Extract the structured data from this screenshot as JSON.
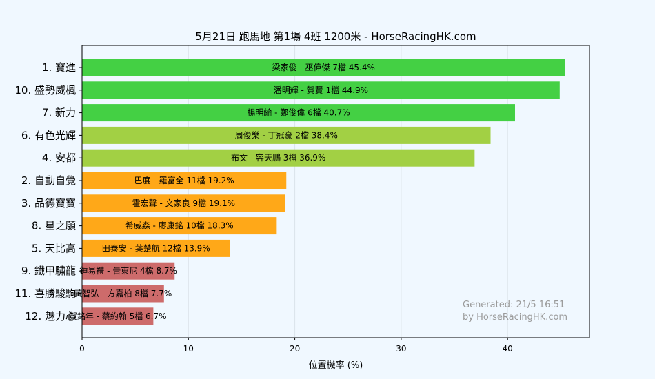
{
  "chart_data": {
    "type": "bar",
    "orientation": "horizontal",
    "title": "5月21日  跑馬地  第1場  4班  1200米 - HorseRacingHK.com",
    "xlabel": "位置機率 (%)",
    "ylabel": "",
    "xlim": [
      0,
      47.7
    ],
    "xticks": [
      0,
      10,
      20,
      30,
      40
    ],
    "grid": "vertical",
    "categories": [
      "1. 寶進",
      "10. 盛勢威楓",
      "7. 新力",
      "6. 有色光輝",
      "4. 安都",
      "2. 自動自覺",
      "3. 品德寶寶",
      "8. 星之願",
      "5. 天比高",
      "9. 鐵甲驌龍",
      "11. 喜勝駿駒",
      "12. 魅力心"
    ],
    "values": [
      45.4,
      44.9,
      40.7,
      38.4,
      36.9,
      19.2,
      19.1,
      18.3,
      13.9,
      8.7,
      7.7,
      6.7
    ],
    "bar_labels": [
      "梁家俊 - 巫偉傑 7檔  45.4%",
      "潘明輝 - 賀賢 1檔  44.9%",
      "楊明綸 - 鄭俊偉 6檔  40.7%",
      "周俊樂 - 丁冠豪 2檔  38.4%",
      "布文 - 容天鵬 3檔  36.9%",
      "巴度 - 羅富全 11檔  19.2%",
      "霍宏聲 - 文家良 9檔  19.1%",
      "希威森 - 廖康銘 10檔  18.3%",
      "田泰安 - 葉楚航 12檔  13.9%",
      "鍾易禮 - 告東尼 4檔  8.7%",
      "黃智弘 - 方嘉柏 8檔  7.7%",
      "賀銘年 - 蔡約翰 5檔  6.7%"
    ],
    "bar_colors": [
      "#44d044",
      "#44d044",
      "#44d044",
      "#a2d044",
      "#a2d044",
      "#ffa818",
      "#ffa818",
      "#ffa818",
      "#ffa818",
      "#cd6b6b",
      "#cd6b6b",
      "#cd6b6b"
    ],
    "watermark": [
      "Generated: 21/5 16:51",
      "by HorseRacingHK.com"
    ]
  },
  "colors": {
    "background": "#f0f8ff",
    "grid": "#dbe3ea",
    "axis": "#000000",
    "watermark": "#9a9a9a"
  }
}
